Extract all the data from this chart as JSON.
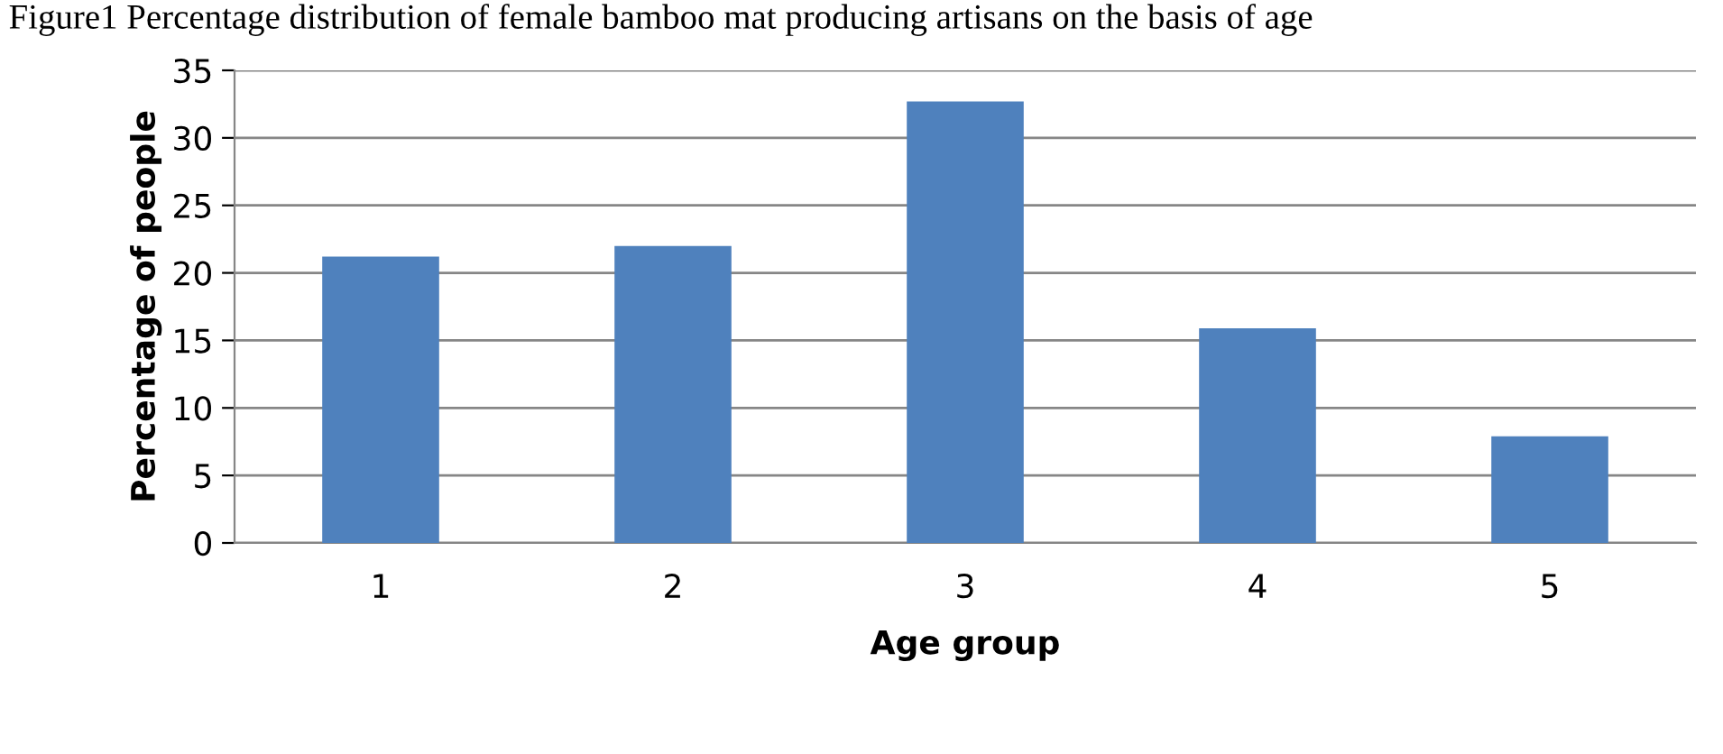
{
  "chart_data": {
    "type": "bar",
    "title": "Figure1 Percentage distribution of female bamboo mat producing artisans on the basis of age",
    "xlabel": "Age group",
    "ylabel": "Percentage of people",
    "categories": [
      "1",
      "2",
      "3",
      "4",
      "5"
    ],
    "values": [
      21.2,
      22.0,
      32.7,
      15.9,
      7.9
    ],
    "color": "#4f81bd",
    "ylim": [
      0,
      35
    ],
    "yticks": [
      0,
      5,
      10,
      15,
      20,
      25,
      30,
      35
    ],
    "grid": "y",
    "legend": false
  }
}
